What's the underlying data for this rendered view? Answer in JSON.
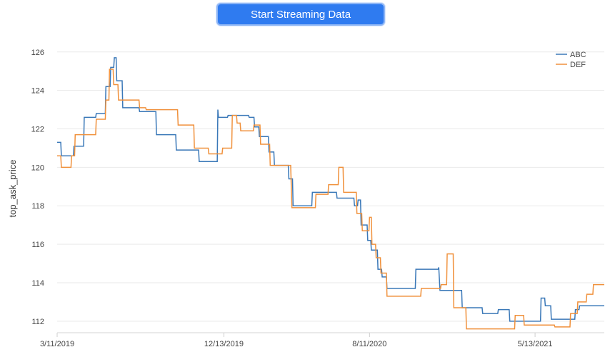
{
  "toolbar": {
    "stream_button_label": "Start Streaming Data"
  },
  "chart_data": {
    "type": "line",
    "step": true,
    "title": "",
    "xlabel": "",
    "ylabel": "top_ask_price",
    "ylim": [
      111.4,
      126.4
    ],
    "y_ticks": [
      112,
      114,
      116,
      118,
      120,
      122,
      124,
      126
    ],
    "x_range": [
      "2019-03-11",
      "2021-09-05"
    ],
    "x_ticks": [
      {
        "date": "2019-03-11",
        "label": "3/11/2019"
      },
      {
        "date": "2019-12-13",
        "label": "12/13/2019"
      },
      {
        "date": "2020-08-11",
        "label": "8/11/2020"
      },
      {
        "date": "2021-05-13",
        "label": "5/13/2021"
      }
    ],
    "grid": {
      "horizontal": true,
      "vertical": false
    },
    "legend": "top-right",
    "series": [
      {
        "name": "ABC",
        "color": "#3a78b8",
        "points": [
          [
            "2019-03-11",
            121.3
          ],
          [
            "2019-03-17",
            121.3
          ],
          [
            "2019-03-18",
            120.6
          ],
          [
            "2019-04-07",
            120.6
          ],
          [
            "2019-04-08",
            121.1
          ],
          [
            "2019-04-24",
            121.1
          ],
          [
            "2019-04-25",
            122.6
          ],
          [
            "2019-05-14",
            122.6
          ],
          [
            "2019-05-15",
            122.8
          ],
          [
            "2019-05-30",
            122.8
          ],
          [
            "2019-05-31",
            124.2
          ],
          [
            "2019-06-07",
            124.2
          ],
          [
            "2019-06-08",
            125.2
          ],
          [
            "2019-06-13",
            125.2
          ],
          [
            "2019-06-14",
            125.7
          ],
          [
            "2019-06-17",
            125.7
          ],
          [
            "2019-06-18",
            124.5
          ],
          [
            "2019-06-27",
            124.5
          ],
          [
            "2019-06-28",
            123.1
          ],
          [
            "2019-07-25",
            123.1
          ],
          [
            "2019-07-26",
            122.9
          ],
          [
            "2019-08-22",
            122.9
          ],
          [
            "2019-08-23",
            121.7
          ],
          [
            "2019-09-24",
            121.7
          ],
          [
            "2019-09-25",
            120.9
          ],
          [
            "2019-11-01",
            120.9
          ],
          [
            "2019-11-02",
            120.3
          ],
          [
            "2019-12-02",
            120.3
          ],
          [
            "2019-12-03",
            123.0
          ],
          [
            "2019-12-04",
            122.6
          ],
          [
            "2019-12-19",
            122.6
          ],
          [
            "2019-12-20",
            122.7
          ],
          [
            "2020-01-23",
            122.7
          ],
          [
            "2020-01-24",
            122.6
          ],
          [
            "2020-02-01",
            122.6
          ],
          [
            "2020-02-02",
            122.1
          ],
          [
            "2020-02-09",
            122.1
          ],
          [
            "2020-02-10",
            121.6
          ],
          [
            "2020-02-25",
            121.6
          ],
          [
            "2020-02-26",
            120.8
          ],
          [
            "2020-03-05",
            120.8
          ],
          [
            "2020-03-06",
            120.1
          ],
          [
            "2020-03-29",
            120.1
          ],
          [
            "2020-03-30",
            119.4
          ],
          [
            "2020-04-05",
            119.4
          ],
          [
            "2020-04-06",
            118.0
          ],
          [
            "2020-05-07",
            118.0
          ],
          [
            "2020-05-08",
            118.7
          ],
          [
            "2020-06-17",
            118.7
          ],
          [
            "2020-06-18",
            118.4
          ],
          [
            "2020-07-16",
            118.4
          ],
          [
            "2020-07-17",
            118.0
          ],
          [
            "2020-07-22",
            118.0
          ],
          [
            "2020-07-23",
            118.3
          ],
          [
            "2020-07-27",
            118.3
          ],
          [
            "2020-07-28",
            117.0
          ],
          [
            "2020-08-07",
            117.0
          ],
          [
            "2020-08-08",
            116.2
          ],
          [
            "2020-08-13",
            116.2
          ],
          [
            "2020-08-14",
            115.7
          ],
          [
            "2020-08-24",
            115.7
          ],
          [
            "2020-08-25",
            114.7
          ],
          [
            "2020-08-31",
            114.7
          ],
          [
            "2020-09-01",
            114.3
          ],
          [
            "2020-09-08",
            114.3
          ],
          [
            "2020-09-09",
            113.7
          ],
          [
            "2020-10-26",
            113.7
          ],
          [
            "2020-10-27",
            114.7
          ],
          [
            "2020-12-03",
            114.7
          ],
          [
            "2020-12-04",
            114.8
          ],
          [
            "2020-12-06",
            113.6
          ],
          [
            "2021-01-11",
            113.6
          ],
          [
            "2021-01-12",
            112.7
          ],
          [
            "2021-02-14",
            112.7
          ],
          [
            "2021-02-15",
            112.4
          ],
          [
            "2021-03-12",
            112.4
          ],
          [
            "2021-03-13",
            112.6
          ],
          [
            "2021-03-31",
            112.6
          ],
          [
            "2021-04-01",
            112.0
          ],
          [
            "2021-05-22",
            112.0
          ],
          [
            "2021-05-23",
            113.2
          ],
          [
            "2021-05-29",
            113.2
          ],
          [
            "2021-05-30",
            112.8
          ],
          [
            "2021-06-08",
            112.8
          ],
          [
            "2021-06-09",
            112.1
          ],
          [
            "2021-07-18",
            112.1
          ],
          [
            "2021-07-19",
            112.6
          ],
          [
            "2021-07-25",
            112.6
          ],
          [
            "2021-07-26",
            112.8
          ],
          [
            "2021-09-05",
            112.8
          ]
        ]
      },
      {
        "name": "DEF",
        "color": "#f0913c",
        "points": [
          [
            "2019-03-11",
            120.6
          ],
          [
            "2019-03-17",
            120.6
          ],
          [
            "2019-03-18",
            120.0
          ],
          [
            "2019-04-03",
            120.0
          ],
          [
            "2019-04-04",
            120.6
          ],
          [
            "2019-04-09",
            120.6
          ],
          [
            "2019-04-10",
            121.7
          ],
          [
            "2019-05-14",
            121.7
          ],
          [
            "2019-05-15",
            122.5
          ],
          [
            "2019-05-30",
            122.5
          ],
          [
            "2019-05-31",
            123.5
          ],
          [
            "2019-06-05",
            123.5
          ],
          [
            "2019-06-06",
            125.1
          ],
          [
            "2019-06-12",
            125.1
          ],
          [
            "2019-06-13",
            124.3
          ],
          [
            "2019-06-20",
            124.3
          ],
          [
            "2019-06-21",
            123.5
          ],
          [
            "2019-07-25",
            123.5
          ],
          [
            "2019-07-26",
            123.1
          ],
          [
            "2019-08-05",
            123.1
          ],
          [
            "2019-08-06",
            123.0
          ],
          [
            "2019-09-27",
            123.0
          ],
          [
            "2019-09-28",
            122.2
          ],
          [
            "2019-10-24",
            122.2
          ],
          [
            "2019-10-25",
            121.0
          ],
          [
            "2019-11-17",
            121.0
          ],
          [
            "2019-11-18",
            120.7
          ],
          [
            "2019-12-10",
            120.7
          ],
          [
            "2019-12-11",
            121.0
          ],
          [
            "2019-12-26",
            121.0
          ],
          [
            "2019-12-27",
            122.7
          ],
          [
            "2020-01-03",
            122.7
          ],
          [
            "2020-01-04",
            122.3
          ],
          [
            "2020-01-09",
            122.3
          ],
          [
            "2020-01-10",
            121.9
          ],
          [
            "2020-01-31",
            121.9
          ],
          [
            "2020-02-01",
            122.2
          ],
          [
            "2020-02-11",
            122.2
          ],
          [
            "2020-02-12",
            121.2
          ],
          [
            "2020-02-27",
            121.2
          ],
          [
            "2020-02-28",
            120.1
          ],
          [
            "2020-04-02",
            120.1
          ],
          [
            "2020-04-03",
            119.0
          ],
          [
            "2020-04-04",
            117.9
          ],
          [
            "2020-05-13",
            117.9
          ],
          [
            "2020-05-14",
            118.6
          ],
          [
            "2020-06-03",
            118.6
          ],
          [
            "2020-06-04",
            119.1
          ],
          [
            "2020-06-20",
            119.1
          ],
          [
            "2020-06-21",
            120.0
          ],
          [
            "2020-06-28",
            120.0
          ],
          [
            "2020-06-29",
            118.7
          ],
          [
            "2020-07-20",
            118.7
          ],
          [
            "2020-07-21",
            117.6
          ],
          [
            "2020-07-29",
            117.6
          ],
          [
            "2020-07-30",
            116.7
          ],
          [
            "2020-08-10",
            116.7
          ],
          [
            "2020-08-11",
            117.4
          ],
          [
            "2020-08-14",
            117.4
          ],
          [
            "2020-08-15",
            116.0
          ],
          [
            "2020-08-21",
            116.0
          ],
          [
            "2020-08-22",
            115.3
          ],
          [
            "2020-08-29",
            115.3
          ],
          [
            "2020-08-30",
            114.5
          ],
          [
            "2020-09-08",
            114.5
          ],
          [
            "2020-09-09",
            113.3
          ],
          [
            "2020-11-04",
            113.3
          ],
          [
            "2020-11-05",
            113.7
          ],
          [
            "2020-12-07",
            113.7
          ],
          [
            "2020-12-08",
            113.9
          ],
          [
            "2020-12-17",
            113.9
          ],
          [
            "2020-12-18",
            115.5
          ],
          [
            "2020-12-28",
            115.5
          ],
          [
            "2020-12-29",
            112.7
          ],
          [
            "2021-01-18",
            112.7
          ],
          [
            "2021-01-19",
            111.6
          ],
          [
            "2021-04-09",
            111.6
          ],
          [
            "2021-04-10",
            112.3
          ],
          [
            "2021-04-24",
            112.3
          ],
          [
            "2021-04-25",
            111.8
          ],
          [
            "2021-06-14",
            111.8
          ],
          [
            "2021-06-15",
            111.7
          ],
          [
            "2021-07-10",
            111.7
          ],
          [
            "2021-07-11",
            112.4
          ],
          [
            "2021-07-22",
            112.4
          ],
          [
            "2021-07-23",
            113.0
          ],
          [
            "2021-08-06",
            113.0
          ],
          [
            "2021-08-07",
            113.4
          ],
          [
            "2021-08-17",
            113.4
          ],
          [
            "2021-08-18",
            113.9
          ],
          [
            "2021-09-05",
            113.9
          ]
        ]
      }
    ]
  }
}
